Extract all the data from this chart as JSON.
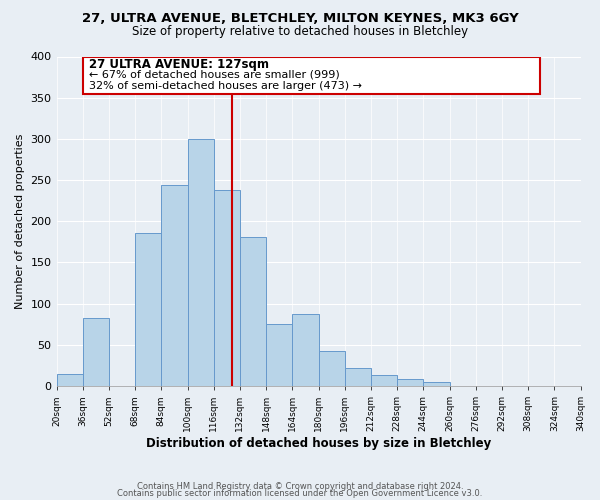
{
  "title1": "27, ULTRA AVENUE, BLETCHLEY, MILTON KEYNES, MK3 6GY",
  "title2": "Size of property relative to detached houses in Bletchley",
  "xlabel": "Distribution of detached houses by size in Bletchley",
  "ylabel": "Number of detached properties",
  "bin_edges": [
    20,
    36,
    52,
    68,
    84,
    100,
    116,
    132,
    148,
    164,
    180,
    196,
    212,
    228,
    244,
    260,
    276,
    292,
    308,
    324,
    340
  ],
  "bar_heights": [
    15,
    82,
    0,
    186,
    244,
    300,
    238,
    181,
    75,
    88,
    42,
    22,
    13,
    8,
    5,
    0,
    0,
    0,
    0,
    0
  ],
  "bar_color": "#b8d4e8",
  "bar_edgecolor": "#6699cc",
  "property_line_x": 127,
  "property_line_color": "#cc0000",
  "ylim": [
    0,
    400
  ],
  "yticks": [
    0,
    50,
    100,
    150,
    200,
    250,
    300,
    350,
    400
  ],
  "annotation_title": "27 ULTRA AVENUE: 127sqm",
  "annotation_line1": "← 67% of detached houses are smaller (999)",
  "annotation_line2": "32% of semi-detached houses are larger (473) →",
  "annotation_box_color": "#ffffff",
  "annotation_box_edgecolor": "#cc0000",
  "footer_line1": "Contains HM Land Registry data © Crown copyright and database right 2024.",
  "footer_line2": "Contains public sector information licensed under the Open Government Licence v3.0.",
  "background_color": "#e8eef4",
  "plot_background_color": "#e8eef4",
  "grid_color": "#ffffff",
  "title1_fontsize": 9.5,
  "title2_fontsize": 8.5,
  "xlabel_fontsize": 8.5,
  "ylabel_fontsize": 8,
  "xtick_fontsize": 6.5,
  "ytick_fontsize": 8,
  "footer_fontsize": 6,
  "ann_title_fontsize": 8.5,
  "ann_text_fontsize": 8
}
